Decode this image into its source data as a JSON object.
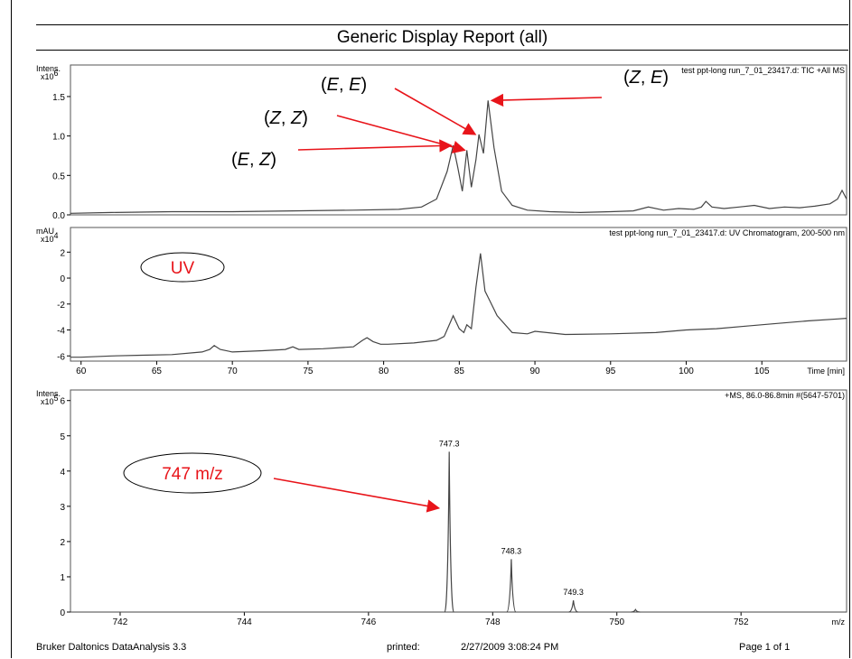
{
  "report": {
    "title": "Generic Display Report (all)",
    "footer_left": "Bruker Daltonics DataAnalysis 3.3",
    "footer_printed_label": "printed:",
    "footer_date": "2/27/2009 3:08:24 PM",
    "footer_page": "Page 1 of 1"
  },
  "colors": {
    "trace": "#444444",
    "annotation": "#e8141a",
    "axis": "#000000"
  },
  "chart_data": [
    {
      "id": "tic",
      "type": "line",
      "title": "test ppt-long run_7_01_23417.d: TIC +All MS",
      "ylabel": "Intens.",
      "yscale_label": "x10",
      "yscale_exp": "6",
      "xlim": [
        59.3,
        110.6
      ],
      "ylim": [
        0,
        1.9
      ],
      "yticks": [
        0.0,
        0.5,
        1.0,
        1.5
      ],
      "ytick_labels": [
        "0.0",
        "0.5",
        "1.0",
        "1.5"
      ],
      "series": [
        {
          "x": [
            59.3,
            62,
            66,
            70,
            74,
            78,
            81,
            82.5,
            83.5,
            84.2,
            84.6,
            84.9,
            85.2,
            85.5,
            85.8,
            86.1,
            86.3,
            86.6,
            86.9,
            87.3,
            87.8,
            88.5,
            89.5,
            91,
            93,
            95,
            96.5,
            97.5,
            98.5,
            99.5,
            100.5,
            101,
            101.3,
            101.7,
            102.5,
            103.5,
            104.5,
            105.5,
            106.5,
            107.5,
            108.5,
            109.5,
            110,
            110.3,
            110.6
          ],
          "y": [
            0.02,
            0.03,
            0.04,
            0.04,
            0.05,
            0.06,
            0.07,
            0.1,
            0.2,
            0.55,
            0.88,
            0.6,
            0.3,
            0.82,
            0.35,
            0.7,
            1.02,
            0.78,
            1.45,
            0.85,
            0.3,
            0.12,
            0.06,
            0.04,
            0.03,
            0.04,
            0.05,
            0.1,
            0.06,
            0.08,
            0.07,
            0.1,
            0.17,
            0.1,
            0.08,
            0.1,
            0.12,
            0.08,
            0.1,
            0.09,
            0.11,
            0.14,
            0.2,
            0.31,
            0.2
          ]
        }
      ],
      "annotations": [
        {
          "text": "(E, E)",
          "italic": "E",
          "sep": ", ",
          "italic2": "E",
          "target_x": 86.3,
          "target_y": 1.02
        },
        {
          "text": "(Z, E)",
          "italic": "Z",
          "sep": ", ",
          "italic2": "E",
          "target_x": 86.9,
          "target_y": 1.45
        },
        {
          "text": "(Z, Z)",
          "italic": "Z",
          "sep": ", ",
          "italic2": "Z",
          "target_x": 85.6,
          "target_y": 0.82
        },
        {
          "text": "(E, Z)",
          "italic": "E",
          "sep": ", ",
          "italic2": "Z",
          "target_x": 84.7,
          "target_y": 0.88
        }
      ]
    },
    {
      "id": "uv",
      "type": "line",
      "title": "test ppt-long run_7_01_23417.d: UV Chromatogram, 200-500 nm",
      "ylabel": "mAU",
      "yscale_label": "x10",
      "yscale_exp": "4",
      "xlim": [
        59.3,
        110.6
      ],
      "ylim": [
        -6.4,
        3.9
      ],
      "yticks": [
        -6,
        -4,
        -2,
        0,
        2
      ],
      "ytick_labels": [
        "-6",
        "-4",
        "-2",
        "0",
        "2"
      ],
      "xticks": [
        60,
        65,
        70,
        75,
        80,
        85,
        90,
        95,
        100,
        105
      ],
      "xtick_labels": [
        "60",
        "65",
        "70",
        "75",
        "80",
        "85",
        "90",
        "95",
        "100",
        "105"
      ],
      "xlabel": "Time [min]",
      "series": [
        {
          "x": [
            59.3,
            60,
            62,
            64,
            66,
            68,
            68.5,
            68.8,
            69.2,
            70,
            72,
            73.5,
            74,
            74.4,
            76,
            78,
            78.6,
            78.9,
            79.3,
            79.8,
            80.3,
            82,
            83.5,
            84,
            84.3,
            84.6,
            85,
            85.3,
            85.5,
            85.8,
            86.1,
            86.4,
            86.7,
            87,
            87.5,
            88.5,
            89.5,
            90,
            92,
            95,
            98,
            100,
            102,
            104,
            106,
            108,
            110,
            110.6
          ],
          "y": [
            -6.1,
            -6.1,
            -6.0,
            -5.95,
            -5.9,
            -5.7,
            -5.5,
            -5.2,
            -5.5,
            -5.7,
            -5.6,
            -5.5,
            -5.3,
            -5.5,
            -5.45,
            -5.3,
            -4.8,
            -4.6,
            -4.9,
            -5.1,
            -5.1,
            -5.0,
            -4.8,
            -4.5,
            -3.7,
            -2.9,
            -3.9,
            -4.2,
            -3.6,
            -3.9,
            -0.7,
            1.9,
            -1.0,
            -1.7,
            -2.9,
            -4.2,
            -4.3,
            -4.1,
            -4.35,
            -4.3,
            -4.2,
            -4.0,
            -3.9,
            -3.7,
            -3.5,
            -3.3,
            -3.15,
            -3.1
          ]
        }
      ],
      "annotations": [
        {
          "text": "UV"
        }
      ]
    },
    {
      "id": "ms",
      "type": "line",
      "title": "+MS, 86.0-86.8min #(5647-5701)",
      "ylabel": "Intens.",
      "yscale_label": "x10",
      "yscale_exp": "5",
      "xlim": [
        741.2,
        753.7
      ],
      "ylim": [
        0,
        6.3
      ],
      "yticks": [
        0,
        1,
        2,
        3,
        4,
        5,
        6
      ],
      "ytick_labels": [
        "0",
        "1",
        "2",
        "3",
        "4",
        "5",
        "6"
      ],
      "xticks": [
        742,
        744,
        746,
        748,
        750,
        752
      ],
      "xtick_labels": [
        "742",
        "744",
        "746",
        "748",
        "750",
        "752"
      ],
      "xlabel": "m/z",
      "peaks": [
        {
          "mz": 747.3,
          "intensity": 4.55,
          "label": "747.3"
        },
        {
          "mz": 748.3,
          "intensity": 1.5,
          "label": "748.3"
        },
        {
          "mz": 749.3,
          "intensity": 0.33,
          "label": "749.3"
        },
        {
          "mz": 750.3,
          "intensity": 0.07,
          "label": ""
        }
      ],
      "annotations": [
        {
          "text": "747 m/z",
          "target_mz": 747.22,
          "target_y": 2.95
        }
      ]
    }
  ]
}
